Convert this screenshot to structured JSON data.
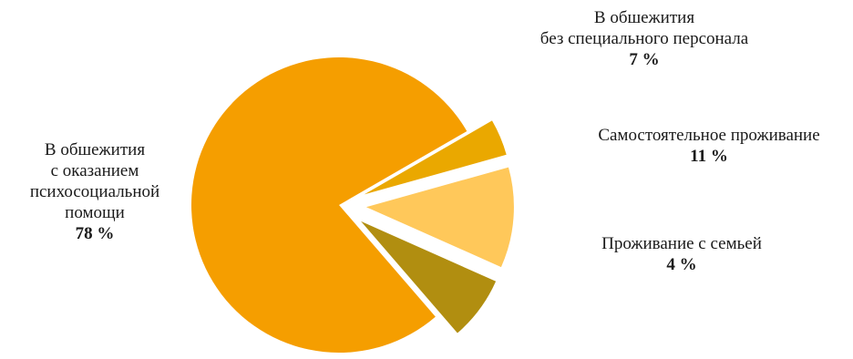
{
  "chart_data": {
    "type": "pie",
    "title": "",
    "unit": "%",
    "slices": [
      {
        "label_lines": [
          "В обшежития",
          "с оказанием",
          "психосоциальной",
          "помощи"
        ],
        "percent_label": "78 %",
        "value": 78,
        "color": "#F59E00",
        "exploded": false
      },
      {
        "label_lines": [
          "В обшежития",
          "без специального персонала"
        ],
        "percent_label": "7 %",
        "value": 7,
        "color": "#B18E10",
        "exploded": true
      },
      {
        "label_lines": [
          "Самостоятельное проживание"
        ],
        "percent_label": "11 %",
        "value": 11,
        "color": "#FFC85A",
        "exploded": true
      },
      {
        "label_lines": [
          "Проживание с семьей"
        ],
        "percent_label": "4 %",
        "value": 4,
        "color": "#EAA800",
        "exploded": true
      }
    ]
  }
}
